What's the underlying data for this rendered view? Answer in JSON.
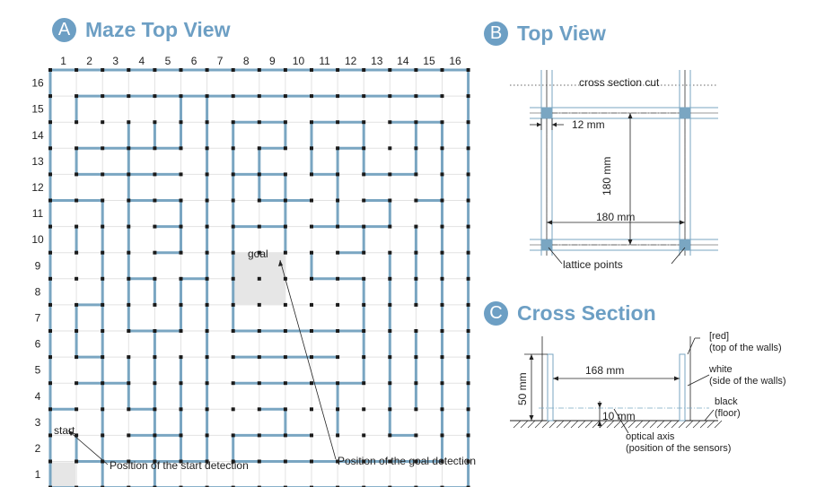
{
  "panel_a": {
    "badge": "A",
    "title": "Maze Top View",
    "col_numbers": [
      "1",
      "2",
      "3",
      "4",
      "5",
      "6",
      "7",
      "8",
      "9",
      "10",
      "11",
      "12",
      "13",
      "14",
      "15",
      "16"
    ],
    "row_numbers": [
      "16",
      "15",
      "14",
      "13",
      "12",
      "11",
      "10",
      "9",
      "8",
      "7",
      "6",
      "5",
      "4",
      "3",
      "2",
      "1"
    ],
    "start_label": "start",
    "goal_label": "goal",
    "start_callout": "Position of the start detection",
    "goal_callout": "Position of the goal detection",
    "wall_color": "#7aa6c2",
    "post_color": "#1a1a1a"
  },
  "panel_b": {
    "badge": "B",
    "title": "Top View",
    "cross_section_cut": "cross section cut",
    "dim_12": "12 mm",
    "dim_180_vertical": "180 mm",
    "dim_180_horizontal": "180 mm",
    "lattice_points": "lattice points"
  },
  "panel_c": {
    "badge": "C",
    "title": "Cross Section",
    "dim_168": "168 mm",
    "dim_50": "50 mm",
    "dim_10": "10 mm",
    "red_label_1": "[red]",
    "red_label_2": "(top of the walls)",
    "white_label_1": "white",
    "white_label_2": "(side of the walls)",
    "black_label_1": "black",
    "black_label_2": "(floor)",
    "optical_label_1": "optical axis",
    "optical_label_2": "(position of the sensors)"
  }
}
